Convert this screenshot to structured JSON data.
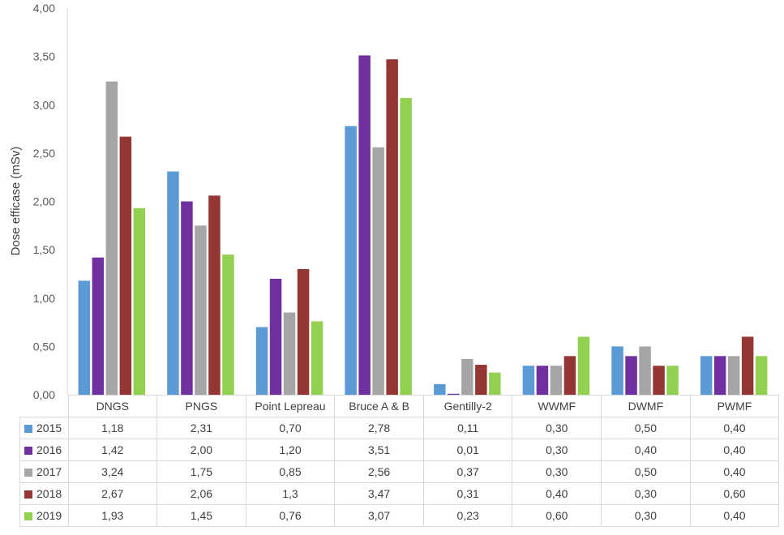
{
  "chart_data": {
    "type": "bar",
    "title": "",
    "ylabel": "Dose efficase (mSv)",
    "ylim": [
      0,
      4
    ],
    "yticks": [
      "0,00",
      "0,50",
      "1,00",
      "1,50",
      "2,00",
      "2,50",
      "3,00",
      "3,50",
      "4,00"
    ],
    "ytick_values": [
      0,
      0.5,
      1,
      1.5,
      2,
      2.5,
      3,
      3.5,
      4
    ],
    "grid": false,
    "legend": "table-below",
    "categories": [
      "DNGS",
      "PNGS",
      "Point Lepreau",
      "Bruce A & B",
      "Gentilly-2",
      "WWMF",
      "DWMF",
      "PWMF"
    ],
    "series": [
      {
        "name": "2015",
        "color": "#5b9bd5",
        "values": [
          1.18,
          2.31,
          0.7,
          2.78,
          0.11,
          0.3,
          0.5,
          0.4
        ],
        "labels": [
          "1,18",
          "2,31",
          "0,70",
          "2,78",
          "0,11",
          "0,30",
          "0,50",
          "0,40"
        ]
      },
      {
        "name": "2016",
        "color": "#7030a0",
        "values": [
          1.42,
          2.0,
          1.2,
          3.51,
          0.01,
          0.3,
          0.4,
          0.4
        ],
        "labels": [
          "1,42",
          "2,00",
          "1,20",
          "3,51",
          "0,01",
          "0,30",
          "0,40",
          "0,40"
        ]
      },
      {
        "name": "2017",
        "color": "#a5a5a5",
        "values": [
          3.24,
          1.75,
          0.85,
          2.56,
          0.37,
          0.3,
          0.5,
          0.4
        ],
        "labels": [
          "3,24",
          "1,75",
          "0,85",
          "2,56",
          "0,37",
          "0,30",
          "0,50",
          "0,40"
        ]
      },
      {
        "name": "2018",
        "color": "#943634",
        "values": [
          2.67,
          2.06,
          1.3,
          3.47,
          0.31,
          0.4,
          0.3,
          0.6
        ],
        "labels": [
          "2,67",
          "2,06",
          "1,3",
          "3,47",
          "0,31",
          "0,40",
          "0,30",
          "0,60"
        ]
      },
      {
        "name": "2019",
        "color": "#92d050",
        "values": [
          1.93,
          1.45,
          0.76,
          3.07,
          0.23,
          0.6,
          0.3,
          0.4
        ],
        "labels": [
          "1,93",
          "1,45",
          "0,76",
          "3,07",
          "0,23",
          "0,60",
          "0,30",
          "0,40"
        ]
      }
    ]
  }
}
